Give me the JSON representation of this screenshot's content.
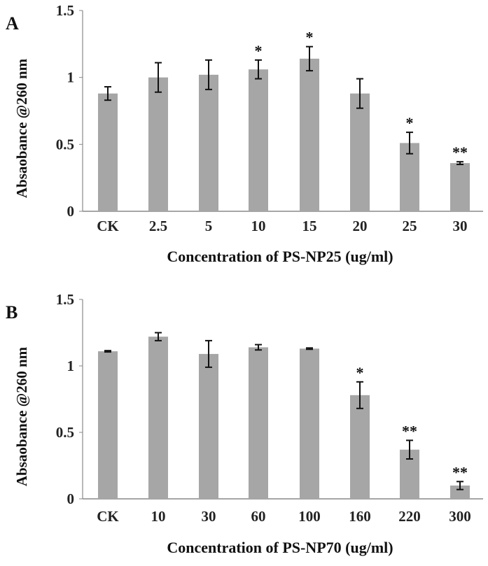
{
  "chart_data": [
    {
      "type": "bar",
      "panel_label": "A",
      "xlabel": "Concentration of PS-NP25 (ug/ml)",
      "ylabel": "Absaobance @260 nm",
      "ylim": [
        0,
        1.5
      ],
      "yticks": [
        "0",
        "0.5",
        "1",
        "1.5"
      ],
      "ytick_values": [
        0,
        0.5,
        1,
        1.5
      ],
      "categories": [
        "CK",
        "2.5",
        "5",
        "10",
        "15",
        "20",
        "25",
        "30"
      ],
      "values": [
        0.88,
        1.0,
        1.02,
        1.06,
        1.14,
        0.88,
        0.51,
        0.36
      ],
      "errors": [
        0.05,
        0.11,
        0.11,
        0.07,
        0.09,
        0.11,
        0.08,
        0.01
      ],
      "significance": [
        "",
        "",
        "",
        "*",
        "*",
        "",
        "*",
        "**"
      ],
      "bar_color": "#a6a6a6",
      "grid": false
    },
    {
      "type": "bar",
      "panel_label": "B",
      "xlabel": "Concentration of PS-NP70 (ug/ml)",
      "ylabel": "Absaobance @260 nm",
      "ylim": [
        0,
        1.5
      ],
      "yticks": [
        "0",
        "0.5",
        "1",
        "1.5"
      ],
      "ytick_values": [
        0,
        0.5,
        1,
        1.5
      ],
      "categories": [
        "CK",
        "10",
        "30",
        "60",
        "100",
        "160",
        "220",
        "300"
      ],
      "values": [
        1.11,
        1.22,
        1.09,
        1.14,
        1.13,
        0.78,
        0.37,
        0.1
      ],
      "errors": [
        0.005,
        0.03,
        0.1,
        0.02,
        0.005,
        0.1,
        0.07,
        0.03
      ],
      "significance": [
        "",
        "",
        "",
        "",
        "",
        "*",
        "**",
        "**"
      ],
      "bar_color": "#a6a6a6",
      "grid": false
    }
  ]
}
